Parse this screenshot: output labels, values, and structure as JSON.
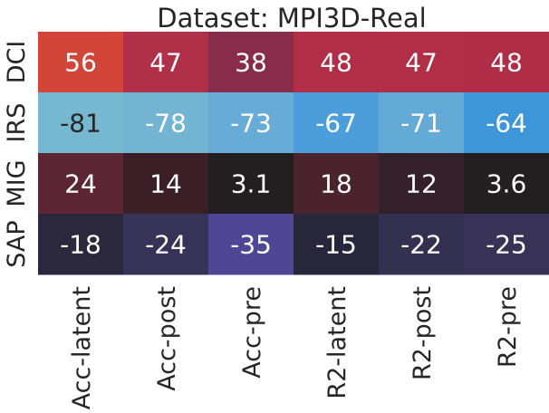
{
  "chart_data": {
    "type": "heatmap",
    "title": "Dataset: MPI3D-Real",
    "xlabel": "",
    "ylabel": "",
    "columns": [
      "Acc-latent",
      "Acc-post",
      "Acc-pre",
      "R2-latent",
      "R2-post",
      "R2-pre"
    ],
    "rows": [
      "DCI",
      "IRS",
      "MIG",
      "SAP"
    ],
    "values": [
      [
        56,
        47,
        38,
        48,
        47,
        48
      ],
      [
        -81,
        -78,
        -73,
        -67,
        -71,
        -64
      ],
      [
        24,
        14,
        3.1,
        18,
        12,
        3.6
      ],
      [
        -18,
        -24,
        -35,
        -15,
        -22,
        -25
      ]
    ],
    "labels": [
      [
        "56",
        "47",
        "38",
        "48",
        "47",
        "48"
      ],
      [
        "-81",
        "-78",
        "-73",
        "-67",
        "-71",
        "-64"
      ],
      [
        "24",
        "14",
        "3.1",
        "18",
        "12",
        "3.6"
      ],
      [
        "-18",
        "-24",
        "-35",
        "-15",
        "-22",
        "-25"
      ]
    ],
    "cell_colors": [
      [
        "#d2463a",
        "#b13049",
        "#892b4a",
        "#b22e48",
        "#b02e48",
        "#b02d47"
      ],
      [
        "#76b8cf",
        "#72b4d2",
        "#66acd6",
        "#4b9ed9",
        "#63abd6",
        "#3d96d8"
      ],
      [
        "#5c2534",
        "#3a1f27",
        "#231e1f",
        "#4a232d",
        "#33202a",
        "#231e1f"
      ],
      [
        "#2b283c",
        "#373257",
        "#4f4695",
        "#28263a",
        "#343050",
        "#383356"
      ]
    ],
    "text_colors": [
      [
        "#ffffff",
        "#ffffff",
        "#ffffff",
        "#ffffff",
        "#ffffff",
        "#ffffff"
      ],
      [
        "#262626",
        "#ffffff",
        "#ffffff",
        "#ffffff",
        "#ffffff",
        "#ffffff"
      ],
      [
        "#ffffff",
        "#ffffff",
        "#ffffff",
        "#ffffff",
        "#ffffff",
        "#ffffff"
      ],
      [
        "#ffffff",
        "#ffffff",
        "#ffffff",
        "#ffffff",
        "#ffffff",
        "#ffffff"
      ]
    ],
    "colorbar": false,
    "grid": false,
    "legend": "none"
  }
}
